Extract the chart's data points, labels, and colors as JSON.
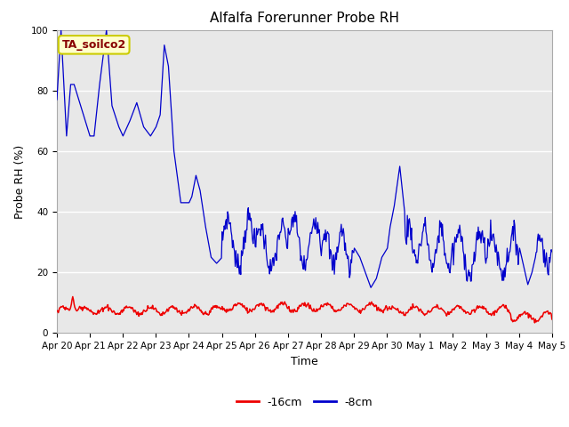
{
  "title": "Alfalfa Forerunner Probe RH",
  "xlabel": "Time",
  "ylabel": "Probe RH (%)",
  "ylim": [
    0,
    100
  ],
  "fig_bg_color": "#ffffff",
  "plot_bg_color": "#e8e8e8",
  "annotation_text": "TA_soilco2",
  "annotation_color": "#880000",
  "annotation_bg": "#ffffcc",
  "annotation_border": "#cccc00",
  "line_8cm_color": "#0000cc",
  "line_16cm_color": "#ee0000",
  "legend_labels": [
    "-16cm",
    "-8cm"
  ],
  "x_tick_labels": [
    "Apr 20",
    "Apr 21",
    "Apr 22",
    "Apr 23",
    "Apr 24",
    "Apr 25",
    "Apr 26",
    "Apr 27",
    "Apr 28",
    "Apr 29",
    "Apr 30",
    "May 1",
    "May 2",
    "May 3",
    "May 4",
    "May 5"
  ],
  "grid_color": "#ffffff",
  "title_fontsize": 11,
  "tick_fontsize": 7.5,
  "label_fontsize": 9
}
